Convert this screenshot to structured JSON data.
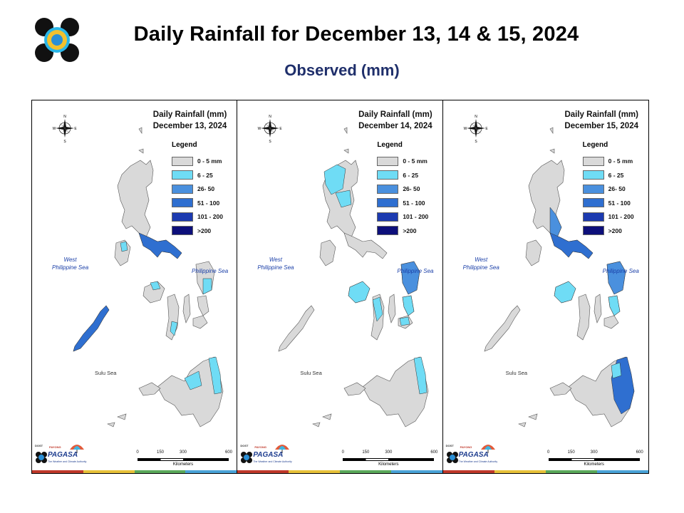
{
  "header": {
    "title": "Daily Rainfall for December 13, 14 & 15, 2024",
    "subtitle": "Observed (mm)"
  },
  "compass_letters": {
    "n": "N",
    "s": "S",
    "e": "E",
    "w": "W"
  },
  "legend": {
    "title": "Legend",
    "classes": [
      {
        "label": "0 - 5 mm",
        "color": "#d9d9d9"
      },
      {
        "label": "6 - 25",
        "color": "#6fdcf5"
      },
      {
        "label": "26- 50",
        "color": "#4a90de"
      },
      {
        "label": "51 - 100",
        "color": "#2f6fd0"
      },
      {
        "label": "101 - 200",
        "color": "#1c3ab0"
      },
      {
        "label": ">200",
        "color": "#0d0f7a"
      }
    ]
  },
  "labels": {
    "west_sea": "West\nPhilippine Sea",
    "phil_sea": "Philippine Sea",
    "sulu_sea": "Sulu Sea"
  },
  "scale": {
    "ticks": [
      "0",
      "150",
      "300",
      "600"
    ],
    "unit": "Kilometers"
  },
  "branding": {
    "dost": "DOST",
    "pagasa": "PAGASA",
    "tagline": "The Weather and Climate Authority",
    "payong": "PAYONG"
  },
  "stripe_colors": [
    "#c0392b",
    "#e8c23a",
    "#5aa95a",
    "#4aa3d8"
  ],
  "panels": [
    {
      "heading": "Daily Rainfall (mm)",
      "date": "December 13, 2024",
      "rain_zones": [
        "palawan",
        "bicol",
        "mindoro_n",
        "samar_s",
        "mindanao_e",
        "mindanao_w",
        "panay_n",
        "negros_s"
      ]
    },
    {
      "heading": "Daily Rainfall (mm)",
      "date": "December 14, 2024",
      "rain_zones": [
        "ilocos",
        "cagayan_n",
        "panay",
        "samar",
        "leyte",
        "negros",
        "mindanao_e",
        "bohol"
      ]
    },
    {
      "heading": "Daily Rainfall (mm)",
      "date": "December 15, 2024",
      "rain_zones": [
        "luzon_e",
        "bicol",
        "samar",
        "panay",
        "leyte",
        "mindanao_e_heavy",
        "mindanao_ne"
      ]
    }
  ]
}
